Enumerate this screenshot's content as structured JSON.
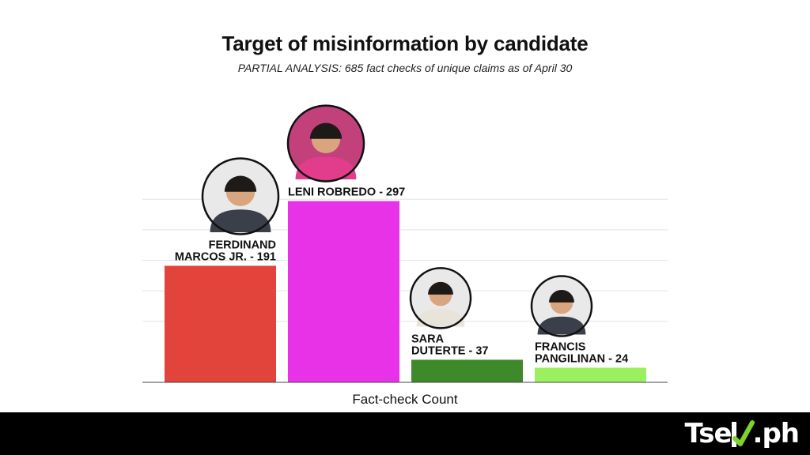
{
  "chart_data": {
    "type": "bar",
    "title": "Target of misinformation by candidate",
    "subtitle": "PARTIAL ANALYSIS: 685 fact checks of unique claims as of April 30",
    "xlabel": "Fact-check Count",
    "ylabel": "",
    "ylim": [
      0,
      400
    ],
    "grid": true,
    "categories": [
      "FERDINAND MARCOS JR.",
      "LENI ROBREDO",
      "SARA DUTERTE",
      "FRANCIS PANGILINAN"
    ],
    "values": [
      191,
      297,
      37,
      24
    ],
    "data_labels": [
      [
        "FERDINAND",
        "MARCOS JR. - 191"
      ],
      [
        "LENI ROBREDO - 297"
      ],
      [
        "SARA",
        "DUTERTE - 37"
      ],
      [
        "FRANCIS",
        "PANGILINAN - 24"
      ]
    ],
    "colors": [
      "#e2433a",
      "#e832e8",
      "#3e8a2a",
      "#9bf060"
    ]
  },
  "brand": {
    "logo_left": "Tse",
    "logo_right": ".ph",
    "check_color": "#7fd12b",
    "footer_color": "#000000"
  }
}
